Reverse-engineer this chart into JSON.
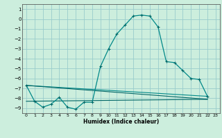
{
  "background_color": "#cceedd",
  "grid_color": "#99cccc",
  "line_color_main": "#006666",
  "line_color_ref": "#008888",
  "xlabel": "Humidex (Indice chaleur)",
  "xlim": [
    -0.5,
    23.5
  ],
  "ylim": [
    -9.5,
    1.5
  ],
  "yticks": [
    1,
    0,
    -1,
    -2,
    -3,
    -4,
    -5,
    -6,
    -7,
    -8,
    -9
  ],
  "xticks": [
    0,
    1,
    2,
    3,
    4,
    5,
    6,
    7,
    8,
    9,
    10,
    11,
    12,
    13,
    14,
    15,
    16,
    17,
    18,
    19,
    20,
    21,
    22,
    23
  ],
  "x_main": [
    0,
    1,
    2,
    3,
    4,
    5,
    6,
    7,
    8,
    9,
    10,
    11,
    12,
    13,
    14,
    15,
    16,
    17,
    18,
    19,
    20,
    21,
    22
  ],
  "y_main": [
    -6.7,
    -8.3,
    -8.9,
    -8.6,
    -7.9,
    -8.9,
    -9.1,
    -8.4,
    -8.4,
    -4.8,
    -3.0,
    -1.5,
    -0.6,
    0.3,
    0.4,
    0.3,
    -0.8,
    -4.3,
    -4.4,
    -5.2,
    -6.0,
    -6.1,
    -7.8
  ],
  "ref_line1_x": [
    0,
    22
  ],
  "ref_line1_y": [
    -6.7,
    -7.8
  ],
  "ref_line2_x": [
    0,
    22
  ],
  "ref_line2_y": [
    -6.7,
    -8.1
  ],
  "ref_line3_x": [
    0,
    22
  ],
  "ref_line3_y": [
    -8.3,
    -8.1
  ]
}
